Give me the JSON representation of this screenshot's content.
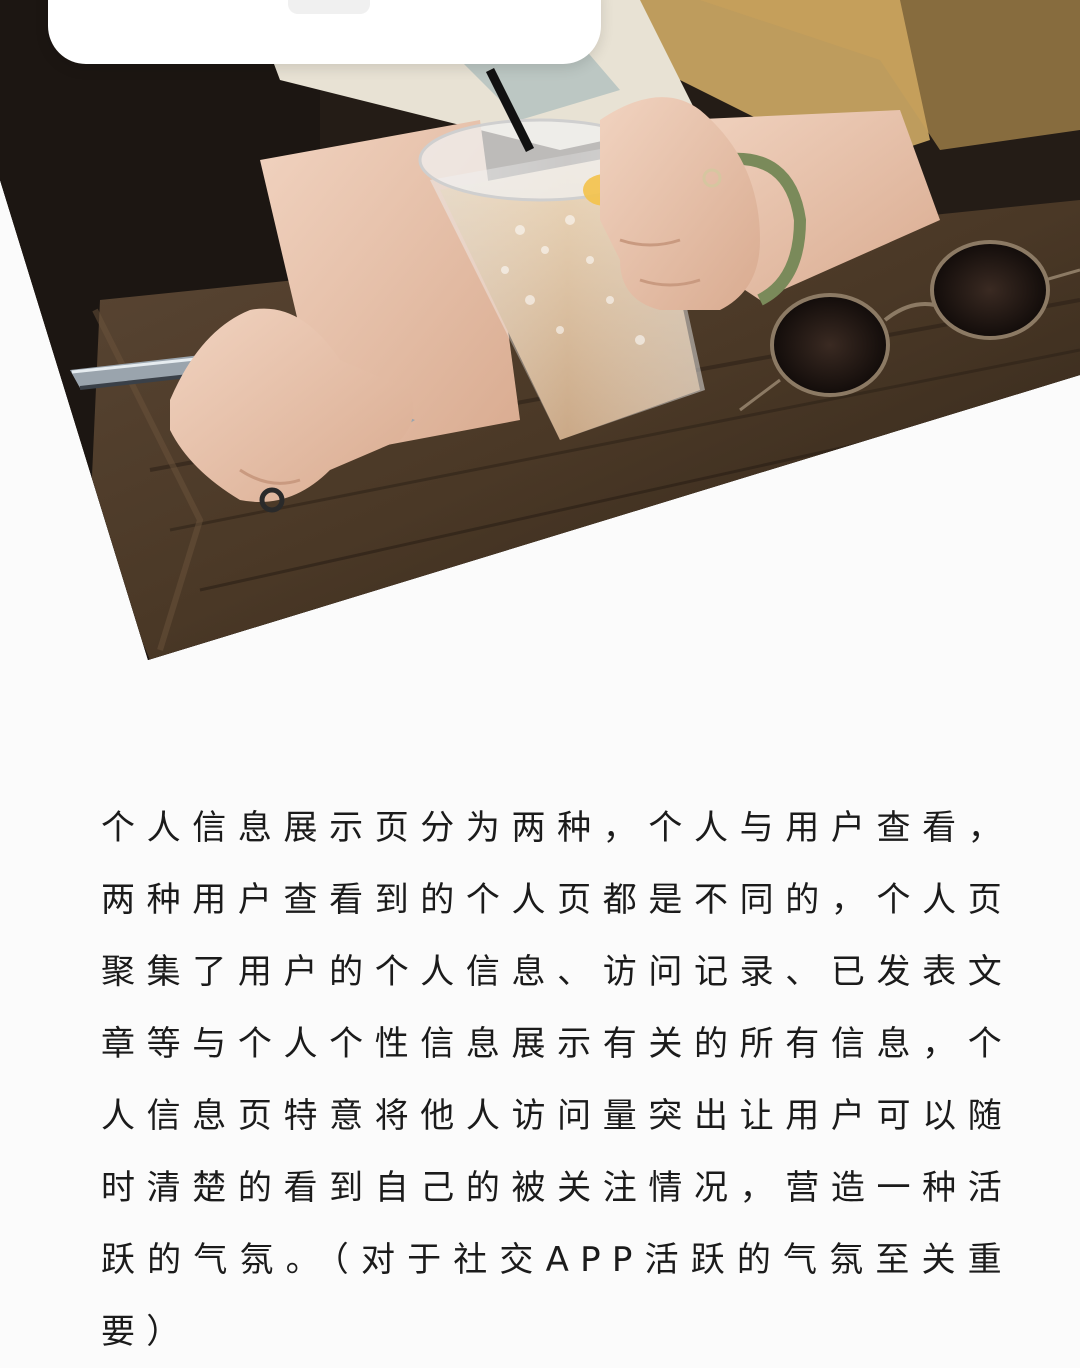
{
  "description": "个人信息展示页分为两种，个人与用户查看，两种用户查看到的个人页都是不同的，个人页聚集了用户的个人信息、访问记录、已发表文章等与个人个性信息展示有关的所有信息，个人信息页特意将他人访问量突出让用户可以随时清楚的看到自己的被关注情况，营造一种活跃的气氛。（对于社交APP活跃的气氛至关重要）",
  "colors": {
    "background": "#fbfbfb",
    "text": "#1b1b1b",
    "card": "#ffffff"
  },
  "hero": {
    "icon": "photo-woman-iced-coffee-phone-sunglasses"
  }
}
